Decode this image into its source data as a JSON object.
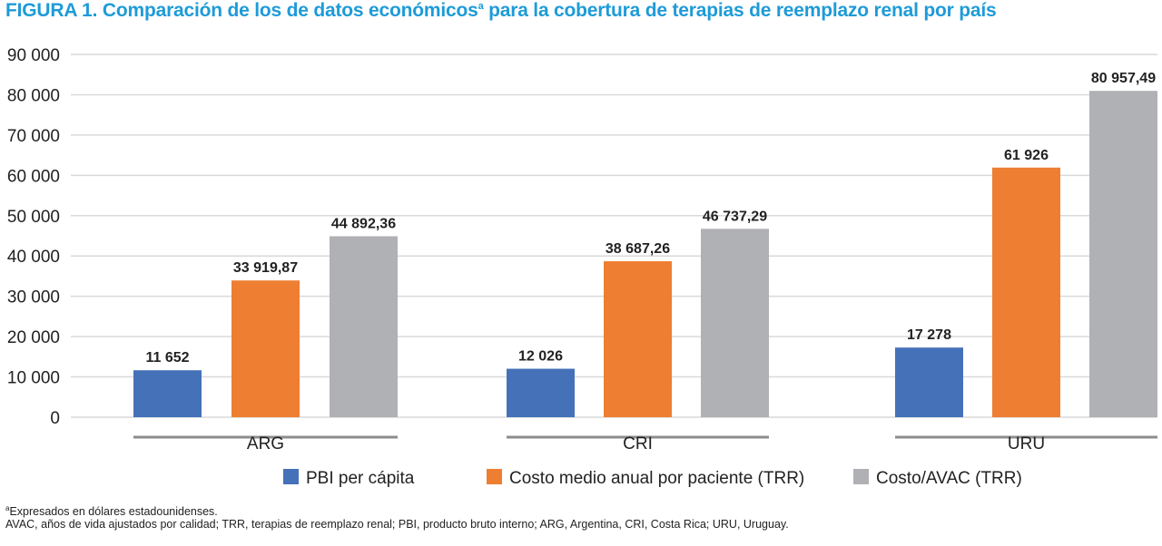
{
  "title": {
    "main": "FIGURA 1. Comparación de los de datos económicos",
    "sup": "a",
    "rest": " para la cobertura de terapias de reemplazo renal por país"
  },
  "chart_data": {
    "type": "bar",
    "categories": [
      "ARG",
      "CRI",
      "URU"
    ],
    "series": [
      {
        "name": "PBI per cápita",
        "color": "#4571b8",
        "values": [
          11652,
          12026,
          17278
        ],
        "labels": [
          "11 652",
          "12 026",
          "17 278"
        ]
      },
      {
        "name": "Costo medio anual por paciente (TRR)",
        "color": "#ee7e32",
        "values": [
          33919.87,
          38687.26,
          61926
        ],
        "labels": [
          "33 919,87",
          "38 687,26",
          "61 926"
        ]
      },
      {
        "name": "Costo/AVAC (TRR)",
        "color": "#b0b1b4",
        "values": [
          44892.36,
          46737.29,
          80957.49
        ],
        "labels": [
          "44 892,36",
          "46 737,29",
          "80 957,49"
        ]
      }
    ],
    "yticks": [
      "0",
      "10 000",
      "20 000",
      "30 000",
      "40 000",
      "50 000",
      "60 000",
      "70 000",
      "80 000",
      "90 000"
    ],
    "ylim": [
      0,
      90000
    ],
    "grid": true,
    "legend": "bottom"
  },
  "notes": {
    "footnote_sup": "a",
    "footnote": "Expresados en dólares estadounidenses.",
    "abbreviations": "AVAC, años de vida ajustados por calidad; TRR, terapias de reemplazo renal; PBI, producto bruto interno; ARG, Argentina, CRI, Costa Rica; URU, Uruguay."
  }
}
